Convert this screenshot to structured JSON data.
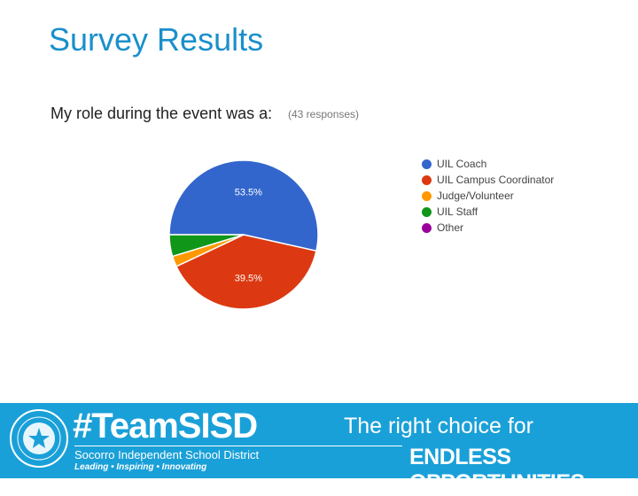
{
  "slide": {
    "title": "Survey Results"
  },
  "chart_data": {
    "type": "pie",
    "title": "My role during the event was a:",
    "subtitle": "(43 responses)",
    "categories": [
      "UIL Coach",
      "UIL Campus Coordinator",
      "Judge/Volunteer",
      "UIL Staff",
      "Other"
    ],
    "values": [
      53.5,
      39.5,
      2.3,
      4.7,
      0
    ],
    "data_labels": [
      "53.5%",
      "39.5%",
      "",
      "",
      ""
    ],
    "colors": [
      "#3366cc",
      "#dc3912",
      "#ff9900",
      "#109618",
      "#990099"
    ],
    "legend_position": "right"
  },
  "footer": {
    "hashtag": "#TeamSISD",
    "district": "Socorro Independent School District",
    "tagline": "Leading • Inspiring • Innovating",
    "line1": "The right choice for",
    "line2": "ENDLESS OPPORTUNITIES."
  }
}
